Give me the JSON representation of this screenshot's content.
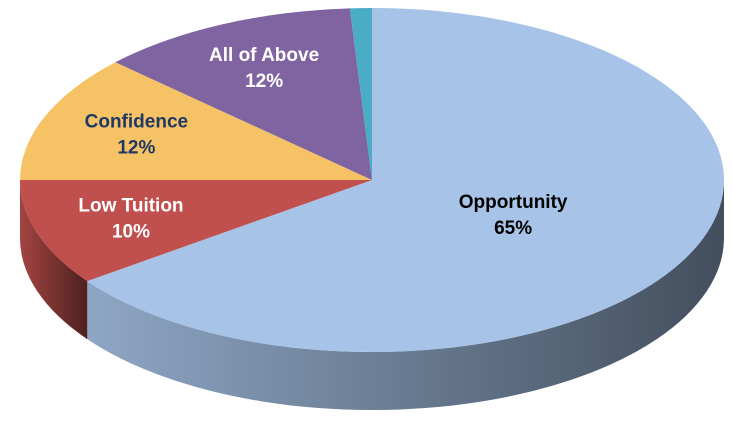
{
  "chart_data": {
    "type": "pie",
    "categories": [
      "Opportunity",
      "Low Tuition",
      "Confidence",
      "All of Above",
      null
    ],
    "values": [
      65,
      10,
      12,
      12,
      1
    ],
    "value_labels": [
      "65%",
      "10%",
      "12%",
      "12%",
      null
    ],
    "colors": [
      "#a7c4e8",
      "#c0504d",
      "#f5c266",
      "#8064a2",
      "#4bacc6"
    ],
    "label_colors": [
      "#000000",
      "#ffffff",
      "#1f3864",
      "#ffffff",
      "#ffffff"
    ]
  }
}
